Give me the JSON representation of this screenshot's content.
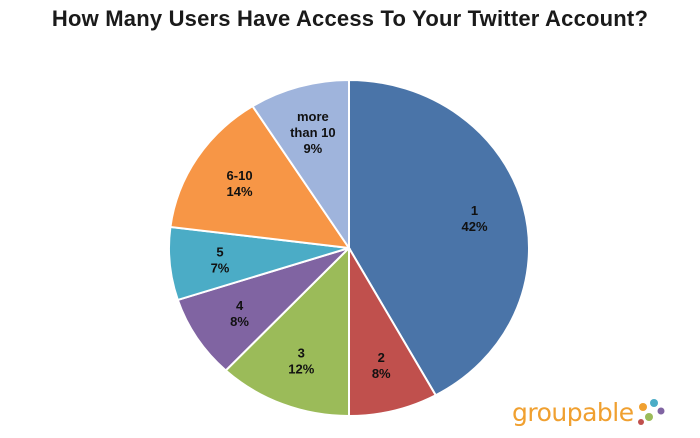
{
  "chart_data": {
    "type": "pie",
    "title": "How Many Users Have Access To Your Twitter Account?",
    "slices": [
      {
        "label": "1",
        "percent_label": "42%",
        "value": 42,
        "color": "#4a74a8"
      },
      {
        "label": "2",
        "percent_label": "8%",
        "value": 8,
        "color": "#c0504d"
      },
      {
        "label": "3",
        "percent_label": "12%",
        "value": 12,
        "color": "#9bbb59"
      },
      {
        "label": "4",
        "percent_label": "8%",
        "value": 8,
        "color": "#8064a2"
      },
      {
        "label": "5",
        "percent_label": "7%",
        "value": 7,
        "color": "#4bacc6"
      },
      {
        "label": "6-10",
        "percent_label": "14%",
        "value": 14,
        "color": "#f79646"
      },
      {
        "label": "more than 10",
        "percent_label": "9%",
        "value": 9,
        "color": "#9fb4dc"
      }
    ],
    "start_angle": "12 o'clock",
    "direction": "clockwise"
  },
  "brand": {
    "name": "groupable",
    "text_color": "#f0a030",
    "dot_colors": [
      "#f0a030",
      "#4bacc6",
      "#8064a2",
      "#9bbb59",
      "#c0504d"
    ]
  }
}
